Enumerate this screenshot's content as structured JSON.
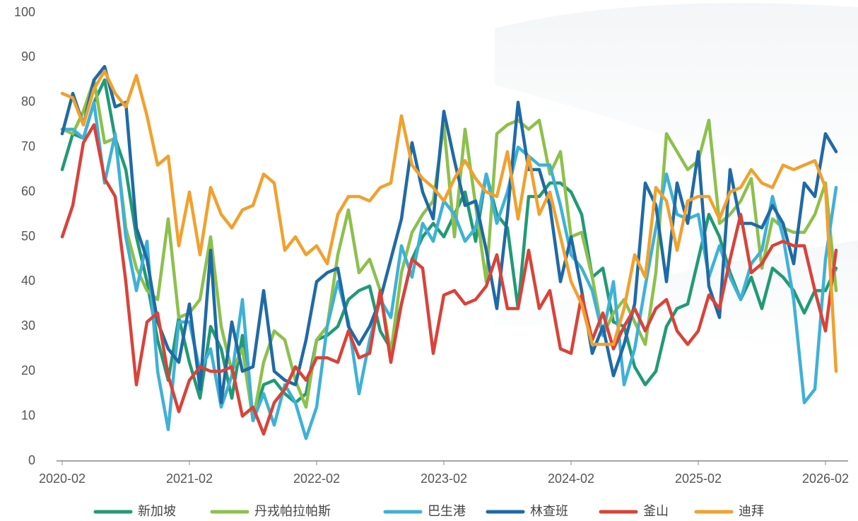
{
  "chart_data": {
    "type": "line",
    "categories": [
      "2020-02",
      null,
      null,
      null,
      null,
      null,
      null,
      null,
      null,
      null,
      null,
      null,
      "2021-02",
      null,
      null,
      null,
      null,
      null,
      null,
      null,
      null,
      null,
      null,
      null,
      "2022-02",
      null,
      null,
      null,
      null,
      null,
      null,
      null,
      null,
      null,
      null,
      null,
      "2023-02",
      null,
      null,
      null,
      null,
      null,
      null,
      null,
      null,
      null,
      null,
      null,
      "2024-02",
      null,
      null,
      null,
      null,
      null,
      null,
      null,
      null,
      null,
      null,
      null,
      "2025-02",
      null,
      null,
      null,
      null,
      null,
      null,
      null,
      null,
      null,
      null,
      null,
      "2026-02",
      null
    ],
    "ylim": [
      0,
      100
    ],
    "yticks": [
      0,
      10,
      20,
      30,
      40,
      50,
      60,
      70,
      80,
      90,
      100
    ],
    "grid": false,
    "legend": "bottom",
    "series": [
      {
        "name": "新加坡",
        "color": "#229a74",
        "values": [
          65,
          73,
          72,
          80,
          85,
          72,
          65,
          50,
          40,
          27,
          18,
          32,
          22,
          14,
          30,
          25,
          14,
          28,
          9,
          17,
          18,
          15,
          13,
          15,
          27,
          28,
          30,
          36,
          38,
          39,
          29,
          25,
          35,
          45,
          50,
          53,
          50,
          55,
          60,
          49,
          64,
          55,
          52,
          34,
          59,
          59,
          62,
          62,
          60,
          55,
          41,
          43,
          31,
          30,
          21,
          17,
          20,
          30,
          34,
          35,
          45,
          55,
          50,
          42,
          36,
          41,
          34,
          43,
          41,
          38,
          33,
          38,
          38,
          43
        ]
      },
      {
        "name": "丹戎帕拉帕斯",
        "color": "#8dc04c",
        "values": [
          74,
          73,
          78,
          85,
          71,
          72,
          52,
          43,
          38,
          36,
          54,
          32,
          33,
          36,
          50,
          30,
          20,
          25,
          9,
          22,
          29,
          27,
          18,
          12,
          27,
          30,
          46,
          56,
          42,
          45,
          38,
          24,
          42,
          51,
          55,
          58,
          75,
          50,
          74,
          57,
          40,
          73,
          75,
          76,
          74,
          76,
          64,
          69,
          50,
          51,
          41,
          28,
          33,
          36,
          31,
          26,
          42,
          73,
          69,
          65,
          67,
          76,
          53,
          55,
          58,
          63,
          43,
          54,
          52,
          51,
          51,
          55,
          62,
          38
        ]
      },
      {
        "name": "巴生港",
        "color": "#3fb1d6",
        "values": [
          74,
          74,
          72,
          80,
          62,
          73,
          50,
          38,
          49,
          20,
          7,
          31,
          31,
          20,
          25,
          12,
          19,
          36,
          9,
          15,
          8,
          17,
          13,
          5,
          12,
          30,
          40,
          31,
          15,
          27,
          36,
          32,
          48,
          41,
          53,
          49,
          58,
          55,
          49,
          52,
          64,
          53,
          60,
          70,
          68,
          66,
          66,
          57,
          46,
          43,
          38,
          28,
          40,
          17,
          25,
          39,
          52,
          64,
          55,
          54,
          55,
          41,
          48,
          41,
          36,
          44,
          47,
          59,
          50,
          36,
          13,
          16,
          45,
          61
        ]
      },
      {
        "name": "林查班",
        "color": "#1f6aa6",
        "values": [
          73,
          82,
          75,
          85,
          88,
          79,
          80,
          52,
          45,
          31,
          25,
          22,
          35,
          16,
          47,
          13,
          31,
          20,
          21,
          38,
          20,
          18,
          17,
          27,
          40,
          42,
          43,
          30,
          26,
          30,
          36,
          45,
          54,
          71,
          60,
          54,
          78,
          67,
          57,
          58,
          47,
          34,
          55,
          80,
          65,
          65,
          57,
          40,
          50,
          38,
          24,
          30,
          19,
          26,
          35,
          62,
          57,
          40,
          62,
          53,
          69,
          39,
          32,
          65,
          53,
          53,
          52,
          57,
          53,
          44,
          62,
          59,
          73,
          69
        ]
      },
      {
        "name": "釜山",
        "color": "#d8433a",
        "values": [
          50,
          57,
          71,
          75,
          63,
          59,
          40,
          17,
          31,
          33,
          19,
          11,
          18,
          21,
          20,
          20,
          21,
          10,
          12,
          6,
          13,
          16,
          21,
          18,
          23,
          23,
          22,
          29,
          23,
          24,
          38,
          22,
          35,
          45,
          43,
          24,
          37,
          38,
          35,
          36,
          39,
          46,
          34,
          34,
          47,
          34,
          38,
          25,
          24,
          37,
          27,
          33,
          25,
          30,
          34,
          29,
          34,
          36,
          29,
          26,
          29,
          37,
          34,
          45,
          55,
          42,
          44,
          48,
          49,
          48,
          48,
          38,
          29,
          47
        ]
      },
      {
        "name": "迪拜",
        "color": "#f0a12e",
        "values": [
          82,
          81,
          75,
          83,
          87,
          82,
          79,
          86,
          77,
          66,
          68,
          48,
          60,
          46,
          61,
          55,
          52,
          56,
          57,
          64,
          62,
          47,
          50,
          46,
          48,
          44,
          55,
          59,
          59,
          58,
          61,
          62,
          77,
          66,
          63,
          61,
          58,
          63,
          67,
          63,
          60,
          59,
          69,
          54,
          68,
          55,
          60,
          50,
          40,
          35,
          26,
          26,
          26,
          34,
          46,
          41,
          61,
          58,
          47,
          58,
          59,
          59,
          54,
          60,
          61,
          65,
          62,
          61,
          66,
          65,
          66,
          67,
          61,
          20
        ]
      }
    ]
  }
}
